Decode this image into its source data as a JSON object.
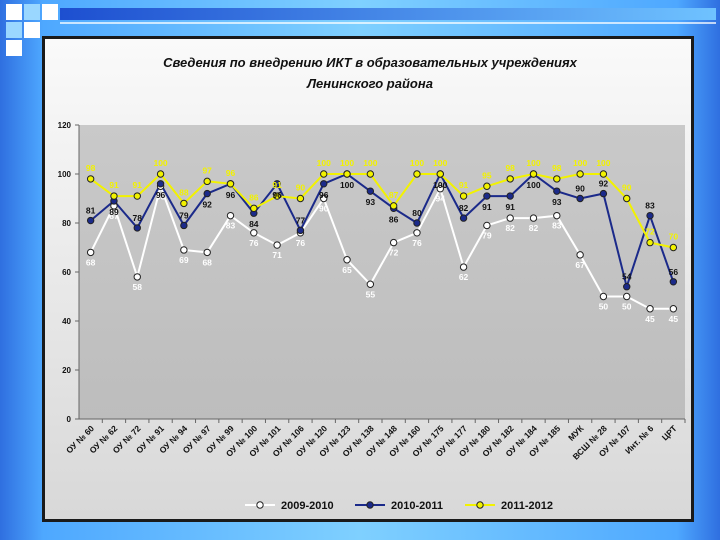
{
  "slide": {
    "colors": {
      "background": "#4ea8ff",
      "panel": "#e6e6e6",
      "border": "#1a1a1a"
    }
  },
  "chart_data": {
    "type": "line",
    "title": "Сведения по внедрению ИКТ в образовательных учреждениях",
    "subtitle": "Ленинского района",
    "xlabel": "",
    "ylabel": "",
    "ylim": [
      0,
      120
    ],
    "yticks": [
      0,
      20,
      40,
      60,
      80,
      100,
      120
    ],
    "grid": false,
    "legend_position": "bottom",
    "categories": [
      "ОУ № 60",
      "ОУ № 62",
      "ОУ № 72",
      "ОУ № 91",
      "ОУ № 94",
      "ОУ № 97",
      "ОУ № 99",
      "ОУ № 100",
      "ОУ № 101",
      "ОУ № 106",
      "ОУ № 120",
      "ОУ № 123",
      "ОУ № 138",
      "ОУ № 148",
      "ОУ № 160",
      "ОУ № 175",
      "ОУ № 177",
      "ОУ № 180",
      "ОУ № 182",
      "ОУ № 184",
      "ОУ № 185",
      "МУК",
      "ВСШ № 28",
      "ОУ № 107",
      "Инт. № 6",
      "ЦРТ"
    ],
    "series": [
      {
        "name": "2009-2010",
        "color": "#ffffff",
        "label_color": "#ffffff",
        "values": [
          68,
          87,
          58,
          95,
          69,
          68,
          83,
          76,
          71,
          76,
          90,
          65,
          55,
          72,
          76,
          94,
          62,
          79,
          82,
          82,
          83,
          67,
          50,
          50,
          45,
          45
        ]
      },
      {
        "name": "2010-2011",
        "color": "#1b2a8a",
        "label_color": "#111111",
        "values": [
          81,
          89,
          78,
          96,
          79,
          92,
          96,
          84,
          96,
          77,
          96,
          100,
          93,
          86,
          80,
          100,
          82,
          91,
          91,
          100,
          93,
          90,
          92,
          54,
          83,
          56
        ]
      },
      {
        "name": "2011-2012",
        "color": "#f2f200",
        "label_color": "#f2f200",
        "values": [
          98,
          91,
          91,
          100,
          88,
          97,
          96,
          86,
          91,
          90,
          100,
          100,
          100,
          87,
          100,
          100,
          91,
          95,
          98,
          100,
          98,
          100,
          100,
          90,
          72,
          70
        ]
      }
    ]
  }
}
